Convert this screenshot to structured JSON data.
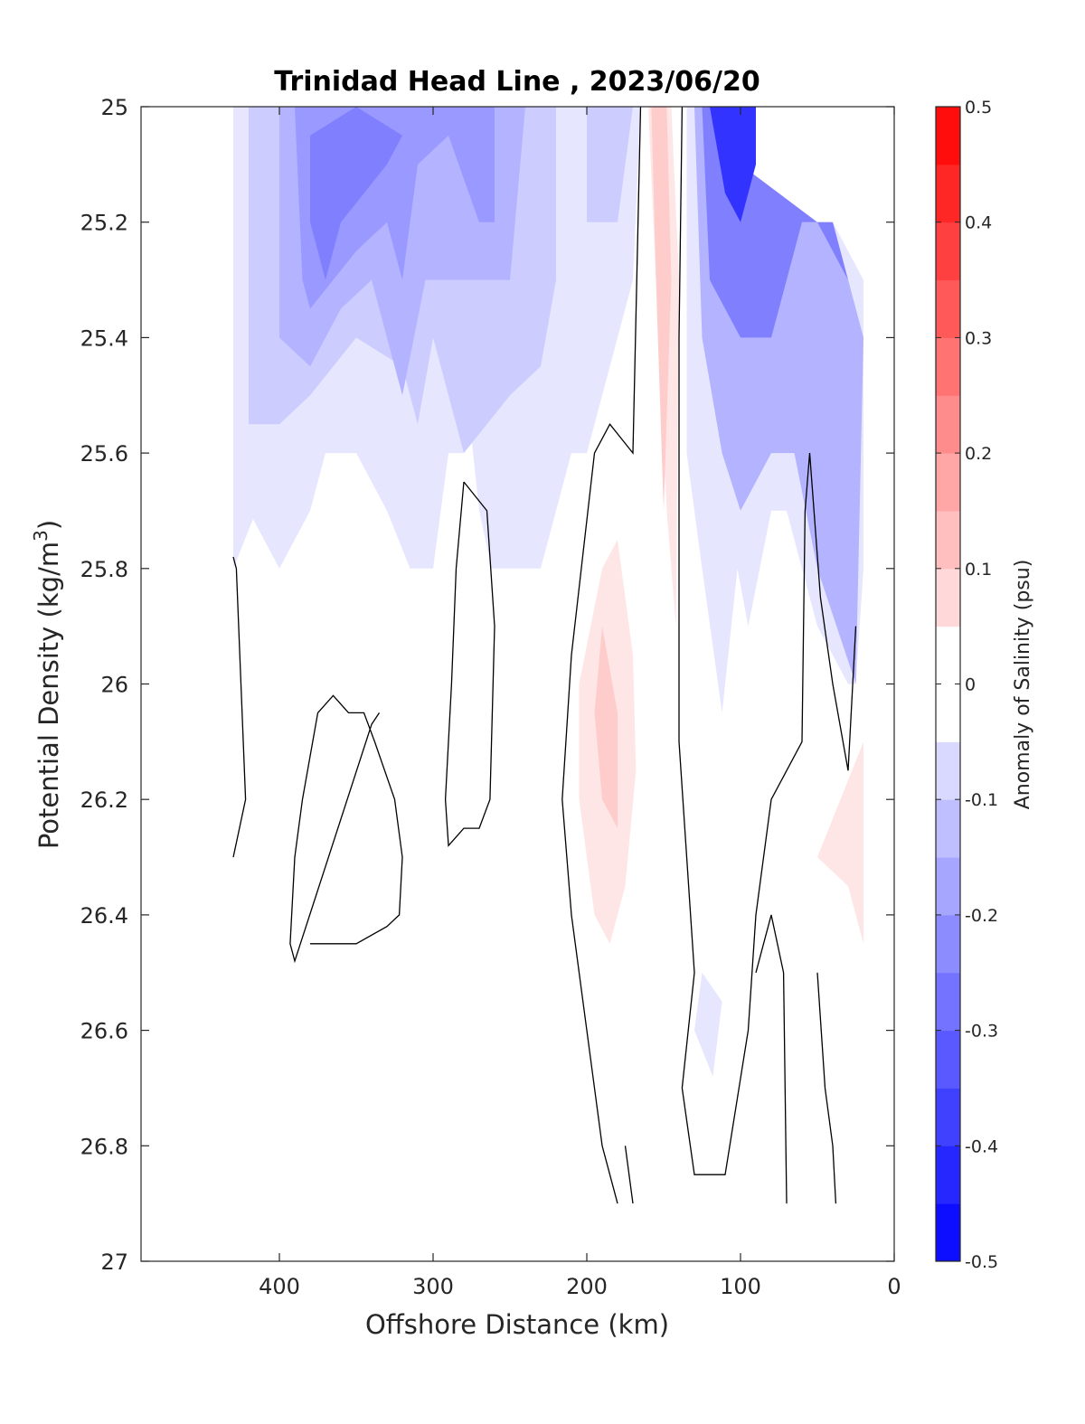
{
  "chart_data": {
    "type": "contour",
    "title": "Trinidad Head Line , 2023/06/20",
    "xlabel": "Offshore Distance (km)",
    "ylabel": "Potential Density (kg/m3)",
    "colorbar_label": "Anomaly of Salinity (psu)",
    "x_direction": "reversed",
    "y_direction": "reversed",
    "xlim": [
      490,
      0
    ],
    "ylim": [
      25,
      27
    ],
    "xticks": [
      "400",
      "300",
      "200",
      "100",
      "0"
    ],
    "yticks": [
      "25",
      "25.2",
      "25.4",
      "25.6",
      "25.8",
      "26",
      "26.2",
      "26.4",
      "26.6",
      "26.8",
      "27"
    ],
    "clim": [
      -0.5,
      0.5
    ],
    "colorbar_ticks": [
      "0.5",
      "0.4",
      "0.3",
      "0.2",
      "0.1",
      "0",
      "-0.1",
      "-0.2",
      "-0.3",
      "-0.4",
      "-0.5"
    ],
    "colormap": {
      "negative": "#0000ff",
      "zero": "#ffffff",
      "positive": "#ff0000"
    },
    "level_step": 0.05,
    "zero_contour_color": "#000000",
    "regions": [
      {
        "name": "offshore fresh band",
        "anomaly": -0.05,
        "polygon": [
          [
            430,
            25
          ],
          [
            290,
            25
          ],
          [
            290,
            25.6
          ],
          [
            310,
            25.6
          ],
          [
            350,
            25.6
          ],
          [
            400,
            25.6
          ],
          [
            430,
            25.8
          ],
          [
            430,
            25
          ]
        ]
      },
      {
        "name": "offshore fresh band",
        "anomaly": -0.05,
        "polygon": [
          [
            430,
            25
          ],
          [
            420,
            25.7
          ],
          [
            400,
            25.8
          ],
          [
            380,
            25.7
          ],
          [
            370,
            25.6
          ],
          [
            350,
            25.6
          ],
          [
            330,
            25.7
          ],
          [
            315,
            25.8
          ],
          [
            300,
            25.8
          ],
          [
            290,
            25.6
          ],
          [
            280,
            25.6
          ],
          [
            280,
            25
          ],
          [
            430,
            25
          ]
        ]
      },
      {
        "name": "offshore fresh band",
        "anomaly": -0.05,
        "polygon": [
          [
            290,
            25.4
          ],
          [
            282,
            25.4
          ],
          [
            270,
            25.7
          ],
          [
            262,
            25.8
          ],
          [
            240,
            25.8
          ],
          [
            230,
            25.8
          ],
          [
            220,
            25.7
          ],
          [
            210,
            25.6
          ],
          [
            200,
            25.6
          ],
          [
            190,
            25.5
          ],
          [
            170,
            25.3
          ],
          [
            165,
            25
          ],
          [
            300,
            25
          ],
          [
            290,
            25.4
          ]
        ]
      },
      {
        "name": "offshore fresh core",
        "anomaly": -0.1,
        "polygon": [
          [
            420,
            25
          ],
          [
            420,
            25.55
          ],
          [
            400,
            25.55
          ],
          [
            380,
            25.5
          ],
          [
            350,
            25.4
          ],
          [
            320,
            25.45
          ],
          [
            310,
            25.55
          ],
          [
            300,
            25.4
          ],
          [
            290,
            25.5
          ],
          [
            280,
            25.6
          ],
          [
            265,
            25.55
          ],
          [
            250,
            25.5
          ],
          [
            230,
            25.45
          ],
          [
            220,
            25.3
          ],
          [
            220,
            25
          ],
          [
            420,
            25
          ]
        ]
      },
      {
        "name": "offshore fresh core",
        "anomaly": -0.1,
        "polygon": [
          [
            200,
            25
          ],
          [
            200,
            25.2
          ],
          [
            180,
            25.2
          ],
          [
            170,
            25
          ],
          [
            200,
            25
          ]
        ]
      },
      {
        "name": "offshore fresh core",
        "anomaly": -0.15,
        "polygon": [
          [
            400,
            25
          ],
          [
            400,
            25.4
          ],
          [
            380,
            25.45
          ],
          [
            360,
            25.35
          ],
          [
            340,
            25.3
          ],
          [
            320,
            25.5
          ],
          [
            305,
            25.3
          ],
          [
            300,
            25.3
          ],
          [
            290,
            25.3
          ],
          [
            270,
            25.3
          ],
          [
            250,
            25.3
          ],
          [
            240,
            25
          ],
          [
            400,
            25
          ]
        ]
      },
      {
        "name": "offshore fresh core",
        "anomaly": -0.2,
        "polygon": [
          [
            390,
            25
          ],
          [
            385,
            25.3
          ],
          [
            380,
            25.35
          ],
          [
            350,
            25.25
          ],
          [
            330,
            25.2
          ],
          [
            320,
            25.3
          ],
          [
            310,
            25.1
          ],
          [
            290,
            25.05
          ],
          [
            270,
            25.2
          ],
          [
            260,
            25.2
          ],
          [
            260,
            25
          ],
          [
            390,
            25
          ]
        ]
      },
      {
        "name": "offshore fresh core",
        "anomaly": -0.25,
        "polygon": [
          [
            380,
            25.05
          ],
          [
            350,
            25
          ],
          [
            320,
            25.05
          ],
          [
            330,
            25.1
          ],
          [
            360,
            25.2
          ],
          [
            370,
            25.3
          ],
          [
            380,
            25.2
          ],
          [
            380,
            25.05
          ]
        ]
      },
      {
        "name": "positive tongue",
        "anomaly": 0.05,
        "polygon": [
          [
            160,
            25
          ],
          [
            145,
            25
          ],
          [
            140,
            25.3
          ],
          [
            142,
            25.9
          ],
          [
            148,
            25.7
          ],
          [
            155,
            25.3
          ],
          [
            160,
            25
          ]
        ]
      },
      {
        "name": "positive tongue",
        "anomaly": 0.1,
        "polygon": [
          [
            158,
            25
          ],
          [
            148,
            25
          ],
          [
            145,
            25.3
          ],
          [
            150,
            25.7
          ],
          [
            155,
            25.3
          ],
          [
            158,
            25
          ]
        ]
      },
      {
        "name": "mid-depth salty lens",
        "anomaly": 0.05,
        "polygon": [
          [
            180,
            25.75
          ],
          [
            190,
            25.8
          ],
          [
            205,
            26
          ],
          [
            205,
            26.2
          ],
          [
            195,
            26.4
          ],
          [
            185,
            26.45
          ],
          [
            175,
            26.35
          ],
          [
            168,
            26.15
          ],
          [
            170,
            25.95
          ],
          [
            180,
            25.75
          ]
        ]
      },
      {
        "name": "mid-depth salty lens",
        "anomaly": 0.1,
        "polygon": [
          [
            190,
            25.9
          ],
          [
            195,
            26.05
          ],
          [
            190,
            26.2
          ],
          [
            180,
            26.25
          ],
          [
            180,
            26.05
          ],
          [
            190,
            25.9
          ]
        ]
      },
      {
        "name": "nearshore fresh core",
        "anomaly": -0.05,
        "polygon": [
          [
            135,
            25
          ],
          [
            135,
            25.6
          ],
          [
            125,
            25.8
          ],
          [
            112,
            26.05
          ],
          [
            102,
            25.8
          ],
          [
            95,
            25.9
          ],
          [
            80,
            25.7
          ],
          [
            70,
            25.7
          ],
          [
            60,
            25.8
          ],
          [
            50,
            25.9
          ],
          [
            30,
            26
          ],
          [
            25,
            26
          ],
          [
            20,
            25.8
          ],
          [
            20,
            25.3
          ],
          [
            40,
            25.2
          ],
          [
            100,
            25.2
          ],
          [
            110,
            25
          ],
          [
            135,
            25
          ]
        ]
      },
      {
        "name": "nearshore fresh core",
        "anomaly": -0.15,
        "polygon": [
          [
            130,
            25
          ],
          [
            125,
            25.4
          ],
          [
            112,
            25.6
          ],
          [
            100,
            25.7
          ],
          [
            80,
            25.6
          ],
          [
            65,
            25.6
          ],
          [
            50,
            25.8
          ],
          [
            25,
            26
          ],
          [
            20,
            25.4
          ],
          [
            40,
            25.2
          ],
          [
            100,
            25.2
          ],
          [
            110,
            25
          ],
          [
            130,
            25
          ]
        ]
      },
      {
        "name": "nearshore fresh core",
        "anomaly": -0.25,
        "polygon": [
          [
            125,
            25
          ],
          [
            120,
            25.3
          ],
          [
            100,
            25.4
          ],
          [
            80,
            25.4
          ],
          [
            60,
            25.2
          ],
          [
            40,
            25.2
          ],
          [
            20,
            25.4
          ],
          [
            30,
            25.3
          ],
          [
            50,
            25.2
          ],
          [
            100,
            25.1
          ],
          [
            110,
            25
          ],
          [
            125,
            25
          ]
        ]
      },
      {
        "name": "nearshore fresh core",
        "anomaly": -0.4,
        "polygon": [
          [
            120,
            25
          ],
          [
            110,
            25.15
          ],
          [
            100,
            25.2
          ],
          [
            90,
            25.1
          ],
          [
            90,
            25
          ],
          [
            120,
            25
          ]
        ]
      },
      {
        "name": "nearshore salty patch",
        "anomaly": 0.05,
        "polygon": [
          [
            50,
            26.3
          ],
          [
            30,
            26.35
          ],
          [
            20,
            26.45
          ],
          [
            20,
            26.1
          ],
          [
            35,
            26.2
          ],
          [
            50,
            26.3
          ]
        ]
      },
      {
        "name": "deep fresh spot",
        "anomaly": -0.05,
        "polygon": [
          [
            130,
            26.6
          ],
          [
            118,
            26.68
          ],
          [
            112,
            26.55
          ],
          [
            125,
            26.5
          ],
          [
            130,
            26.6
          ]
        ]
      }
    ],
    "zero_contours": [
      [
        [
          430,
          25.78
        ],
        [
          428,
          25.8
        ],
        [
          425,
          26
        ],
        [
          422,
          26.2
        ],
        [
          430,
          26.3
        ]
      ],
      [
        [
          335,
          26.05
        ],
        [
          340,
          26.07
        ],
        [
          390,
          26.48
        ],
        [
          393,
          26.45
        ],
        [
          392,
          26.4
        ],
        [
          390,
          26.3
        ],
        [
          385,
          26.2
        ],
        [
          375,
          26.05
        ],
        [
          365,
          26.02
        ],
        [
          355,
          26.05
        ],
        [
          345,
          26.05
        ],
        [
          338,
          26.1
        ],
        [
          325,
          26.2
        ],
        [
          320,
          26.3
        ],
        [
          322,
          26.4
        ],
        [
          330,
          26.42
        ],
        [
          350,
          26.45
        ],
        [
          365,
          26.45
        ],
        [
          380,
          26.45
        ]
      ],
      [
        [
          280,
          25.65
        ],
        [
          285,
          25.8
        ],
        [
          288,
          26
        ],
        [
          292,
          26.2
        ],
        [
          290,
          26.28
        ],
        [
          280,
          26.25
        ],
        [
          270,
          26.25
        ],
        [
          263,
          26.2
        ],
        [
          262,
          26.1
        ],
        [
          260,
          25.9
        ],
        [
          265,
          25.7
        ],
        [
          280,
          25.65
        ]
      ],
      [
        [
          165,
          25
        ],
        [
          170,
          25.6
        ],
        [
          185,
          25.55
        ],
        [
          195,
          25.6
        ],
        [
          210,
          25.95
        ],
        [
          216,
          26.2
        ],
        [
          210,
          26.4
        ],
        [
          200,
          26.6
        ],
        [
          195,
          26.7
        ],
        [
          190,
          26.8
        ],
        [
          180,
          26.9
        ]
      ],
      [
        [
          175,
          26.8
        ],
        [
          170,
          26.9
        ]
      ],
      [
        [
          138,
          25
        ],
        [
          140,
          25.4
        ],
        [
          140,
          26.1
        ],
        [
          135,
          26.3
        ],
        [
          130,
          26.5
        ],
        [
          138,
          26.7
        ],
        [
          130,
          26.85
        ],
        [
          110,
          26.85
        ],
        [
          95,
          26.6
        ],
        [
          90,
          26.4
        ],
        [
          80,
          26.2
        ],
        [
          60,
          26.1
        ],
        [
          58,
          25.7
        ],
        [
          55,
          25.6
        ],
        [
          48,
          25.85
        ],
        [
          40,
          26
        ],
        [
          30,
          26.15
        ],
        [
          25,
          25.9
        ]
      ],
      [
        [
          90,
          26.5
        ],
        [
          85,
          26.45
        ],
        [
          80,
          26.4
        ],
        [
          72,
          26.5
        ],
        [
          70,
          26.9
        ]
      ],
      [
        [
          50,
          26.5
        ],
        [
          45,
          26.7
        ],
        [
          40,
          26.8
        ],
        [
          38,
          26.9
        ]
      ]
    ]
  }
}
